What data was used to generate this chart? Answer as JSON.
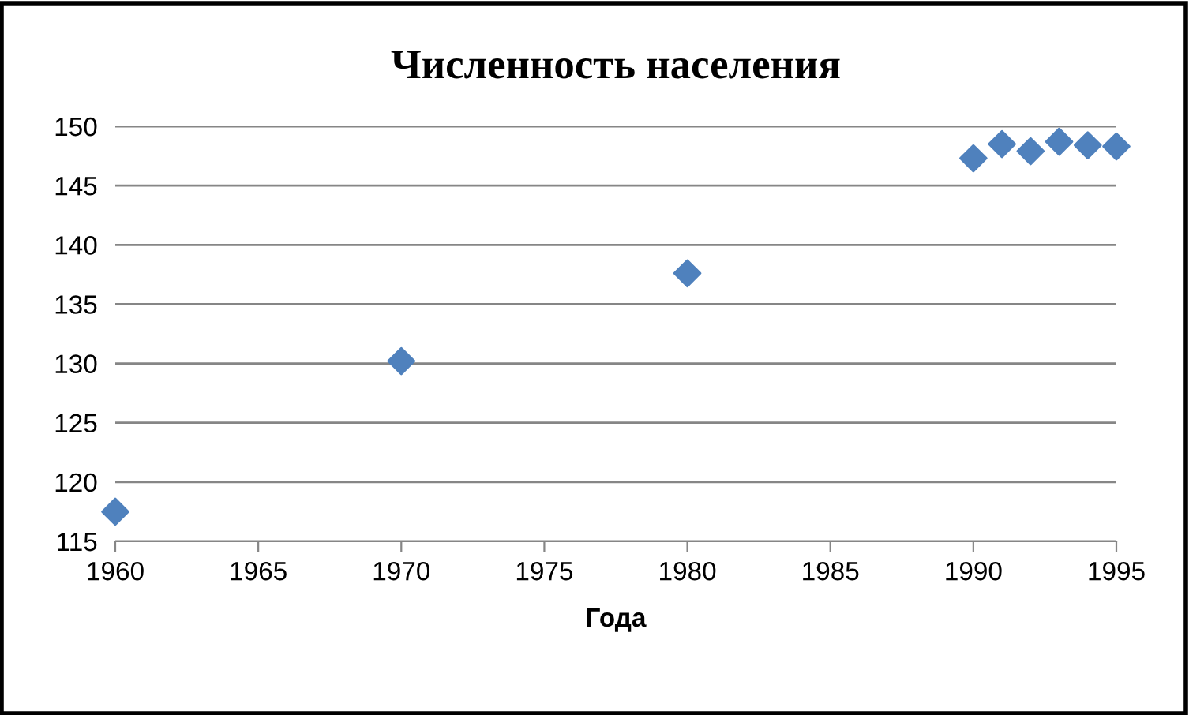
{
  "chart_data": {
    "type": "scatter",
    "title": "Численность населения",
    "xlabel": "Года",
    "x": [
      1960,
      1970,
      1980,
      1990,
      1991,
      1992,
      1993,
      1994,
      1995
    ],
    "series": [
      {
        "color": "#4f81bd",
        "values": [
          117.5,
          130.2,
          137.6,
          147.3,
          148.5,
          147.9,
          148.7,
          148.4,
          148.3
        ]
      }
    ],
    "xlim": [
      1960,
      1995
    ],
    "xticks": [
      1960,
      1965,
      1970,
      1975,
      1980,
      1985,
      1990,
      1995
    ],
    "ylim": [
      115,
      150
    ],
    "yticks": [
      115,
      120,
      125,
      130,
      135,
      140,
      145,
      150
    ],
    "grid": "y",
    "marker": "diamond",
    "legend": false
  }
}
